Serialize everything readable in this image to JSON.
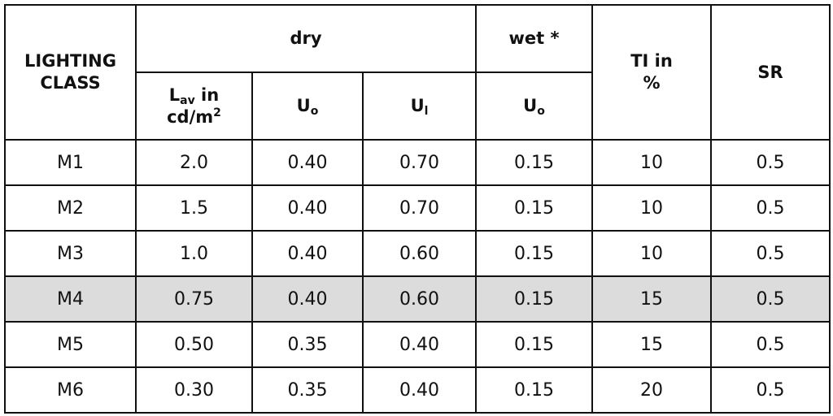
{
  "header": {
    "lighting_class": "LIGHTING CLASS",
    "lighting_class_line1": "LIGHTING",
    "lighting_class_line2": "CLASS",
    "dry": "dry",
    "wet": "wet *",
    "ti_line1": "TI in",
    "ti_line2": "%",
    "sr": "SR",
    "lav_main": "L",
    "lav_sub": "av",
    "lav_tail": " in",
    "lav_unit_main": "cd/m",
    "lav_unit_sup": "2",
    "uo_main": "U",
    "uo_sub": "o",
    "ul_main": "U",
    "ul_sub": "l",
    "wet_uo_main": "U",
    "wet_uo_sub": "o"
  },
  "rows": [
    {
      "class": "M1",
      "lav": "2.0",
      "uo": "0.40",
      "ul": "0.70",
      "wet_uo": "0.15",
      "ti": "10",
      "sr": "0.5"
    },
    {
      "class": "M2",
      "lav": "1.5",
      "uo": "0.40",
      "ul": "0.70",
      "wet_uo": "0.15",
      "ti": "10",
      "sr": "0.5"
    },
    {
      "class": "M3",
      "lav": "1.0",
      "uo": "0.40",
      "ul": "0.60",
      "wet_uo": "0.15",
      "ti": "10",
      "sr": "0.5"
    },
    {
      "class": "M4",
      "lav": "0.75",
      "uo": "0.40",
      "ul": "0.60",
      "wet_uo": "0.15",
      "ti": "15",
      "sr": "0.5"
    },
    {
      "class": "M5",
      "lav": "0.50",
      "uo": "0.35",
      "ul": "0.40",
      "wet_uo": "0.15",
      "ti": "15",
      "sr": "0.5"
    },
    {
      "class": "M6",
      "lav": "0.30",
      "uo": "0.35",
      "ul": "0.40",
      "wet_uo": "0.15",
      "ti": "20",
      "sr": "0.5"
    }
  ],
  "highlight_color": "#dcdcdc"
}
